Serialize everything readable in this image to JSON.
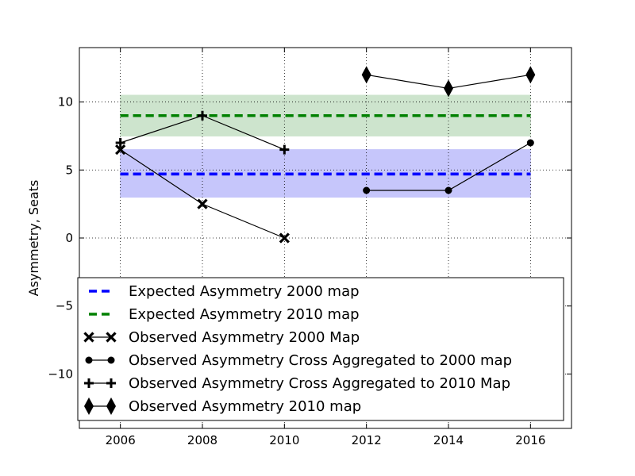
{
  "chart_data": {
    "type": "line",
    "title": "",
    "xlabel": "",
    "ylabel": "Asymmetry, Seats",
    "xlim": [
      2005,
      2017
    ],
    "ylim": [
      -14,
      14
    ],
    "x_ticks": [
      2006,
      2008,
      2010,
      2012,
      2014,
      2016
    ],
    "y_ticks": [
      -10,
      -5,
      0,
      5,
      10
    ],
    "x_tick_labels": [
      "2006",
      "2008",
      "2010",
      "2012",
      "2014",
      "2016"
    ],
    "y_tick_labels": [
      "−10",
      "−5",
      "0",
      "5",
      "10"
    ],
    "grid": true,
    "legend_position": "lower-center",
    "bands": [
      {
        "name": "Expected Asymmetry 2000 map",
        "x": [
          2006,
          2016
        ],
        "center": 4.7,
        "lower": 3.0,
        "upper": 6.5,
        "color": "#0000ff",
        "fill": "#c6c6fb"
      },
      {
        "name": "Expected Asymmetry 2010 map",
        "x": [
          2006,
          2016
        ],
        "center": 9.0,
        "lower": 7.5,
        "upper": 10.5,
        "color": "#008000",
        "fill": "#cde4cd"
      }
    ],
    "series": [
      {
        "name": "Observed Asymmetry 2000 Map",
        "marker": "x",
        "x": [
          2006,
          2008,
          2010
        ],
        "y": [
          6.5,
          2.5,
          0.0
        ]
      },
      {
        "name": "Observed Asymmetry Cross Aggregated to 2000 map",
        "marker": "circle",
        "x": [
          2012,
          2014,
          2016
        ],
        "y": [
          3.5,
          3.5,
          7.0
        ]
      },
      {
        "name": "Observed Asymmetry Cross Aggregated to 2010 Map",
        "marker": "plus",
        "x": [
          2006,
          2008,
          2010
        ],
        "y": [
          7.0,
          9.0,
          6.5
        ]
      },
      {
        "name": "Observed Asymmetry 2010 map",
        "marker": "diamond",
        "x": [
          2012,
          2014,
          2016
        ],
        "y": [
          12.0,
          11.0,
          12.0
        ]
      }
    ],
    "legend": [
      "Expected Asymmetry 2000 map",
      "Expected Asymmetry 2010 map",
      "Observed Asymmetry 2000 Map",
      "Observed Asymmetry Cross Aggregated to 2000 map",
      "Observed Asymmetry Cross Aggregated to 2010 Map",
      "Observed Asymmetry 2010 map"
    ]
  }
}
